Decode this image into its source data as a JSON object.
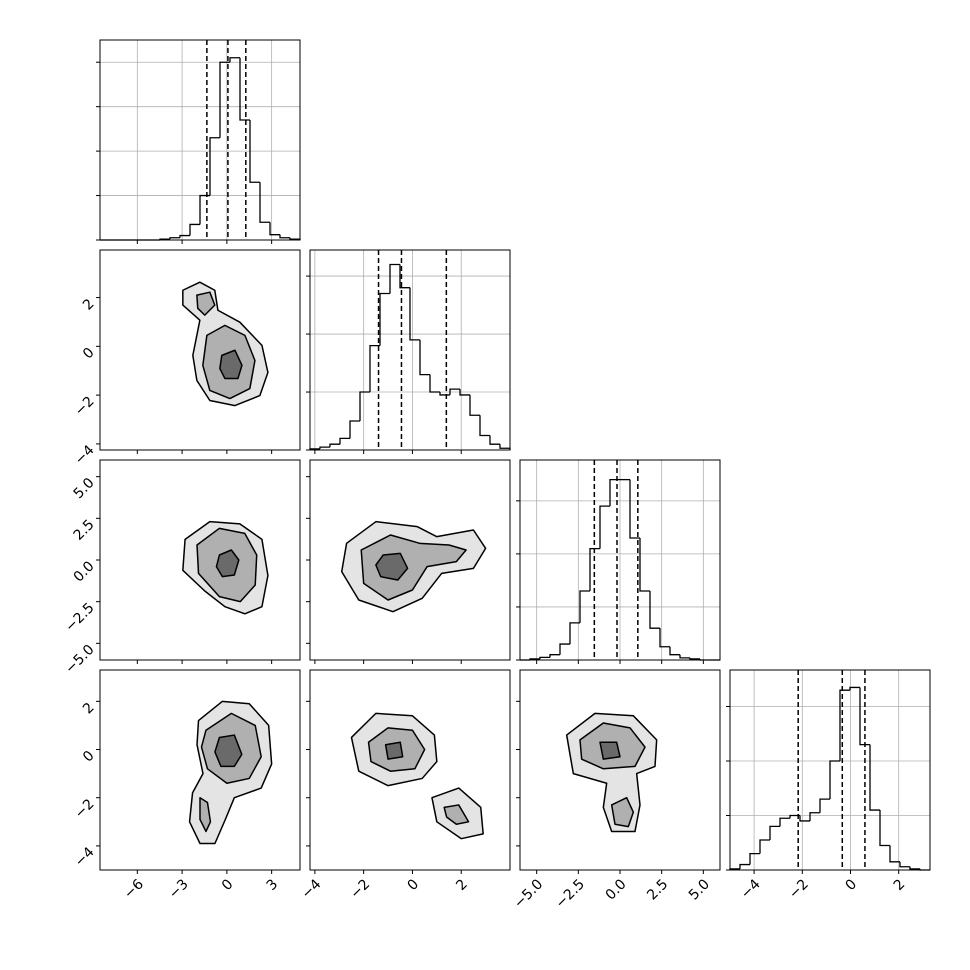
{
  "chart_data": [
    {
      "type": "histogram",
      "grid": true,
      "color": "#000000",
      "bins": [
        -8.5,
        -7.83,
        -7.16,
        -6.49,
        -5.82,
        -5.15,
        -4.48,
        -3.81,
        -3.14,
        -2.47,
        -1.8,
        -1.13,
        -0.46,
        0.21,
        0.88,
        1.55,
        2.22,
        2.89,
        3.56,
        4.23,
        4.9
      ],
      "values": [
        0,
        0,
        0,
        0,
        0,
        0,
        0.02,
        0.05,
        0.1,
        0.35,
        1.0,
        2.3,
        4.0,
        4.1,
        2.7,
        1.3,
        0.4,
        0.12,
        0.05,
        0.02
      ],
      "quantiles": [
        -1.34,
        0.07,
        1.27
      ],
      "xlim": [
        -8.5,
        4.9
      ],
      "ylim": [
        0,
        4.5
      ],
      "xticks": [
        {
          "value": -6,
          "label": "−6"
        },
        {
          "value": -3,
          "label": "−3"
        },
        0,
        3
      ],
      "yticks": [
        0,
        1,
        2,
        3,
        4
      ]
    },
    {
      "type": "contour",
      "fills": [
        "#e4e4e4",
        "#b0b0b0",
        "#6a6a6a"
      ],
      "xlim": [
        -8.5,
        4.9
      ],
      "ylim": [
        -4.25,
        3.95
      ],
      "xticks": [
        {
          "value": -6,
          "label": "−6"
        },
        {
          "value": -3,
          "label": "−3"
        },
        0,
        3
      ],
      "yticks": [
        {
          "value": -4,
          "label": "−4"
        },
        {
          "value": -2,
          "label": "−2"
        },
        0,
        2
      ],
      "contours": [
        [
          {
            "x": [
              -2.95,
              -1.81,
              -0.81,
              -0.6,
              0.87,
              2.35,
              2.75,
              2.21,
              0.54,
              -1.14,
              -2.01,
              -2.28,
              -1.81,
              -2.95
            ],
            "y": [
              2.3,
              2.63,
              2.3,
              1.48,
              0.99,
              0.04,
              -1.07,
              -2.02,
              -2.43,
              -2.22,
              -1.4,
              -0.37,
              1.07,
              1.69
            ]
          }
        ],
        [
          {
            "x": [
              -1.34,
              -0.13,
              1.21,
              1.88,
              1.54,
              0.2,
              -1.14,
              -1.61
            ],
            "y": [
              0.45,
              0.86,
              0.45,
              -0.58,
              -1.73,
              -2.14,
              -1.81,
              -0.78
            ]
          },
          {
            "x": [
              -2.01,
              -1.14,
              -0.81,
              -1.48,
              -1.95
            ],
            "y": [
              2.1,
              2.22,
              1.69,
              1.28,
              1.56
            ]
          }
        ],
        [
          {
            "x": [
              -0.34,
              0.54,
              1.01,
              0.74,
              -0.13,
              -0.47
            ],
            "y": [
              -0.37,
              -0.16,
              -0.78,
              -1.32,
              -1.32,
              -0.91
            ]
          }
        ]
      ]
    },
    {
      "type": "histogram",
      "grid": true,
      "color": "#000000",
      "bins": [
        -4.2,
        -3.79,
        -3.38,
        -2.97,
        -2.56,
        -2.15,
        -1.74,
        -1.33,
        -0.92,
        -0.51,
        -0.1,
        0.31,
        0.72,
        1.13,
        1.54,
        1.95,
        2.36,
        2.77,
        3.18,
        3.59,
        4.0
      ],
      "values": [
        0.02,
        0.05,
        0.1,
        0.2,
        0.5,
        1.0,
        1.8,
        2.7,
        3.2,
        2.8,
        1.9,
        1.3,
        1.0,
        0.95,
        1.05,
        0.95,
        0.6,
        0.25,
        0.1,
        0.03
      ],
      "quantiles": [
        -1.39,
        -0.45,
        1.39
      ],
      "xlim": [
        -4.2,
        4.0
      ],
      "ylim": [
        0,
        3.45
      ],
      "xticks": [
        {
          "value": -4,
          "label": "−4"
        },
        {
          "value": -2,
          "label": "−2"
        },
        0,
        2
      ],
      "yticks": [
        0,
        1,
        2,
        3
      ]
    },
    {
      "type": "contour",
      "fills": [
        "#e4e4e4",
        "#b0b0b0",
        "#6a6a6a"
      ],
      "xlim": [
        -8.5,
        4.9
      ],
      "ylim": [
        -6,
        6
      ],
      "xticks": [
        {
          "value": -6,
          "label": "−6"
        },
        {
          "value": -3,
          "label": "−3"
        },
        0,
        3
      ],
      "yticks": [
        {
          "value": -5,
          "label": "−5.0"
        },
        {
          "value": -2.5,
          "label": "−2.5"
        },
        {
          "value": 0,
          "label": "0.0"
        },
        {
          "value": 2.5,
          "label": "2.5"
        },
        {
          "value": 5,
          "label": "5.0"
        }
      ],
      "contours": [
        [
          {
            "x": [
              -2.8,
              -1.14,
              0.87,
              2.35,
              2.75,
              2.35,
              1.21,
              -0.13,
              -1.48,
              -2.95
            ],
            "y": [
              1.24,
              2.3,
              2.17,
              1.24,
              -0.93,
              -2.8,
              -3.23,
              -2.8,
              -1.86,
              -0.62
            ]
          }
        ],
        [
          {
            "x": [
              -2.0,
              -0.5,
              1.2,
              2.0,
              1.9,
              0.9,
              -0.5,
              -1.9
            ],
            "y": [
              0.9,
              1.9,
              1.6,
              0.3,
              -1.5,
              -2.5,
              -2.2,
              -0.8
            ]
          }
        ],
        [
          {
            "x": [
              -0.5,
              0.3,
              0.8,
              0.5,
              -0.3,
              -0.7
            ],
            "y": [
              0.3,
              0.6,
              0,
              -0.9,
              -1.0,
              -0.4
            ]
          }
        ]
      ]
    },
    {
      "type": "contour",
      "fills": [
        "#e4e4e4",
        "#b0b0b0",
        "#6a6a6a"
      ],
      "xlim": [
        -4.2,
        4.0
      ],
      "ylim": [
        -6,
        6
      ],
      "xticks": [
        {
          "value": -4,
          "label": "−4"
        },
        {
          "value": -2,
          "label": "−2"
        },
        0,
        2
      ],
      "yticks": [
        {
          "value": -5,
          "label": "−5.0"
        },
        {
          "value": -2.5,
          "label": "−2.5"
        },
        {
          "value": 0,
          "label": "0.0"
        },
        {
          "value": 2.5,
          "label": "2.5"
        },
        {
          "value": 5,
          "label": "5.0"
        }
      ],
      "contours": [
        [
          {
            "x": [
              -2.7,
              -1.5,
              0.2,
              1.0,
              2.5,
              3.0,
              2.5,
              1.2,
              0.4,
              -0.8,
              -2.2,
              -2.9
            ],
            "y": [
              1.0,
              2.3,
              2.0,
              1.4,
              1.8,
              0.7,
              -0.5,
              -0.8,
              -2.3,
              -3.1,
              -2.4,
              -0.7
            ]
          }
        ],
        [
          {
            "x": [
              -2.1,
              -0.9,
              0.3,
              1.5,
              2.2,
              1.8,
              0.6,
              0,
              -1.0,
              -2.0
            ],
            "y": [
              0.6,
              1.5,
              1.0,
              0.9,
              0.6,
              -0.1,
              -0.4,
              -1.8,
              -2.4,
              -1.4
            ]
          }
        ],
        [
          {
            "x": [
              -1.2,
              -0.5,
              -0.2,
              -0.6,
              -1.3,
              -1.5
            ],
            "y": [
              0.3,
              0.4,
              -0.5,
              -1.2,
              -1.0,
              -0.3
            ]
          }
        ]
      ]
    },
    {
      "type": "histogram",
      "grid": true,
      "color": "#000000",
      "bins": [
        -6,
        -5.4,
        -4.8,
        -4.2,
        -3.6,
        -3,
        -2.4,
        -1.8,
        -1.2,
        -0.6,
        0,
        0.6,
        1.2,
        1.8,
        2.4,
        3,
        3.6,
        4.2,
        4.8,
        5.4,
        6
      ],
      "values": [
        0,
        0.02,
        0.05,
        0.1,
        0.3,
        0.7,
        1.3,
        2.1,
        2.9,
        3.4,
        3.4,
        2.3,
        1.3,
        0.6,
        0.25,
        0.1,
        0.04,
        0.02,
        0,
        0
      ],
      "quantiles": [
        -1.54,
        -0.18,
        1.07
      ],
      "xlim": [
        -6,
        6
      ],
      "ylim": [
        0,
        3.77
      ],
      "xticks": [
        {
          "value": -5,
          "label": "−5.0"
        },
        {
          "value": -2.5,
          "label": "−2.5"
        },
        {
          "value": 0,
          "label": "0.0"
        },
        {
          "value": 2.5,
          "label": "2.5"
        },
        {
          "value": 5,
          "label": "5.0"
        }
      ],
      "yticks": [
        0,
        1,
        2,
        3
      ]
    },
    {
      "type": "contour",
      "fills": [
        "#e4e4e4",
        "#b0b0b0",
        "#6a6a6a"
      ],
      "xlim": [
        -8.5,
        4.9
      ],
      "ylim": [
        -5.0,
        3.3
      ],
      "xticks": [
        {
          "value": -6,
          "label": "−6"
        },
        {
          "value": -3,
          "label": "−3"
        },
        0,
        3
      ],
      "yticks": [
        {
          "value": -4,
          "label": "−4"
        },
        {
          "value": -2,
          "label": "−2"
        },
        0,
        2
      ],
      "contours": [
        [
          {
            "x": [
              -1.9,
              -0.3,
              1.5,
              2.8,
              3.0,
              2.3,
              0.5,
              -0.1,
              -0.8,
              -1.8,
              -2.5,
              -2.3,
              -1.6,
              -2.0
            ],
            "y": [
              1.2,
              2.0,
              1.9,
              1.0,
              -0.6,
              -1.6,
              -2.0,
              -2.9,
              -3.9,
              -3.9,
              -3.0,
              -1.8,
              -1.0,
              0.2
            ]
          }
        ],
        [
          {
            "x": [
              -1.4,
              0.3,
              1.9,
              2.3,
              1.5,
              0,
              -1.3,
              -1.7
            ],
            "y": [
              0.8,
              1.5,
              1.0,
              -0.3,
              -1.2,
              -1.4,
              -0.8,
              0.1
            ]
          },
          {
            "x": [
              -1.8,
              -1.3,
              -1.1,
              -1.4,
              -1.8
            ],
            "y": [
              -2.0,
              -2.2,
              -3.0,
              -3.4,
              -2.9
            ]
          }
        ],
        [
          {
            "x": [
              -0.5,
              0.5,
              1.0,
              0.5,
              -0.4,
              -0.8
            ],
            "y": [
              0.5,
              0.6,
              -0.2,
              -0.7,
              -0.7,
              -0.1
            ]
          }
        ]
      ]
    },
    {
      "type": "contour",
      "fills": [
        "#e4e4e4",
        "#b0b0b0",
        "#6a6a6a"
      ],
      "xlim": [
        -4.2,
        4.0
      ],
      "ylim": [
        -5.0,
        3.3
      ],
      "xticks": [
        {
          "value": -4,
          "label": "−4"
        },
        {
          "value": -2,
          "label": "−2"
        },
        0,
        2
      ],
      "yticks": [
        {
          "value": -4,
          "label": "−4"
        },
        {
          "value": -2,
          "label": "−2"
        },
        0,
        2
      ],
      "contours": [
        [
          {
            "x": [
              -2.5,
              -1.5,
              0,
              0.9,
              1.0,
              0.4,
              -1.0,
              -2.2
            ],
            "y": [
              0.5,
              1.5,
              1.4,
              0.6,
              -0.5,
              -1.2,
              -1.5,
              -0.9
            ]
          },
          {
            "x": [
              0.8,
              1.9,
              2.8,
              2.9,
              2.0,
              1.0
            ],
            "y": [
              -2.0,
              -1.6,
              -2.4,
              -3.5,
              -3.7,
              -3.0
            ]
          }
        ],
        [
          {
            "x": [
              -1.8,
              -1.0,
              0,
              0.5,
              0.1,
              -0.9,
              -1.7
            ],
            "y": [
              0.3,
              0.9,
              0.8,
              0,
              -0.8,
              -0.9,
              -0.5
            ]
          },
          {
            "x": [
              1.3,
              1.9,
              2.3,
              1.8,
              1.4
            ],
            "y": [
              -2.4,
              -2.3,
              -3.0,
              -3.1,
              -2.8
            ]
          }
        ],
        [
          {
            "x": [
              -1.1,
              -0.5,
              -0.4,
              -1.0
            ],
            "y": [
              0.2,
              0.3,
              -0.3,
              -0.4
            ]
          }
        ]
      ]
    },
    {
      "type": "contour",
      "fills": [
        "#e4e4e4",
        "#b0b0b0",
        "#6a6a6a"
      ],
      "xlim": [
        -6,
        6
      ],
      "ylim": [
        -5.0,
        3.3
      ],
      "xticks": [
        {
          "value": -5,
          "label": "−5.0"
        },
        {
          "value": -2.5,
          "label": "−2.5"
        },
        {
          "value": 0,
          "label": "0.0"
        },
        {
          "value": 2.5,
          "label": "2.5"
        },
        {
          "value": 5,
          "label": "5.0"
        }
      ],
      "yticks": [
        {
          "value": -4,
          "label": "−4"
        },
        {
          "value": -2,
          "label": "−2"
        },
        0,
        2
      ],
      "contours": [
        [
          {
            "x": [
              -3.2,
              -1.5,
              0.8,
              2.2,
              2.1,
              1.0,
              1.2,
              0.9,
              -0.5,
              -1.0,
              -0.8,
              -2.8
            ],
            "y": [
              0.6,
              1.5,
              1.4,
              0.4,
              -0.7,
              -1.0,
              -2.3,
              -3.4,
              -3.4,
              -2.4,
              -1.4,
              -1.0
            ]
          }
        ],
        [
          {
            "x": [
              -2.4,
              -1.0,
              0.6,
              1.5,
              0.9,
              -1.0,
              -2.3
            ],
            "y": [
              0.4,
              1.1,
              0.9,
              0.1,
              -0.7,
              -0.8,
              -0.4
            ]
          },
          {
            "x": [
              -0.5,
              0.4,
              0.8,
              0.5,
              -0.3
            ],
            "y": [
              -2.3,
              -2.0,
              -2.6,
              -3.2,
              -3.1
            ]
          }
        ],
        [
          {
            "x": [
              -1.2,
              -0.2,
              0.0,
              -1.0
            ],
            "y": [
              0.3,
              0.3,
              -0.3,
              -0.4
            ]
          }
        ]
      ]
    },
    {
      "type": "histogram",
      "grid": true,
      "color": "#000000",
      "bins": [
        -5,
        -4.585,
        -4.17,
        -3.755,
        -3.34,
        -2.925,
        -2.51,
        -2.095,
        -1.68,
        -1.265,
        -0.85,
        -0.435,
        -0.02,
        0.395,
        0.81,
        1.225,
        1.64,
        2.055,
        2.47,
        2.885,
        3.3
      ],
      "values": [
        0.02,
        0.1,
        0.3,
        0.55,
        0.8,
        0.95,
        1.0,
        0.9,
        1.05,
        1.3,
        2.0,
        3.3,
        3.35,
        2.3,
        1.1,
        0.45,
        0.15,
        0.06,
        0.02,
        0
      ],
      "quantiles": [
        -2.17,
        -0.34,
        0.6
      ],
      "xlim": [
        -5.0,
        3.3
      ],
      "ylim": [
        0,
        3.67
      ],
      "xticks": [
        {
          "value": -4,
          "label": "−4"
        },
        {
          "value": -2,
          "label": "−2"
        },
        0,
        2
      ],
      "yticks": [
        0,
        1,
        2,
        3
      ]
    }
  ]
}
